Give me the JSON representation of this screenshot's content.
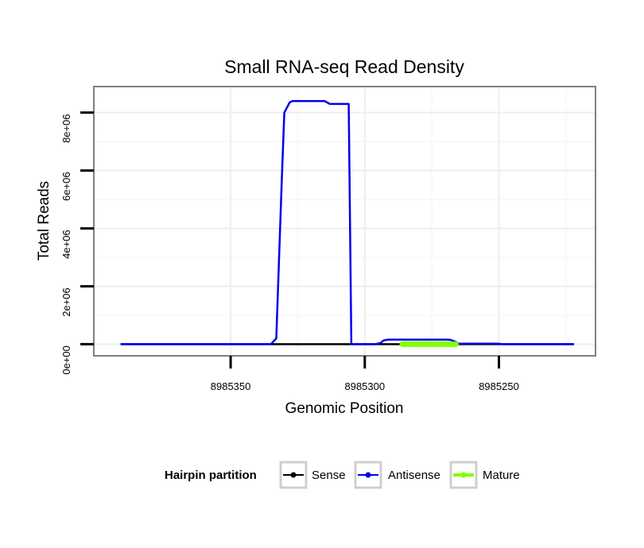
{
  "chart_data": {
    "type": "line",
    "title": "Small RNA-seq Read Density",
    "xlabel": "Genomic Position",
    "ylabel": "Total Reads",
    "x_reversed": true,
    "xlim": [
      8985401,
      8985214
    ],
    "ylim": [
      -400000,
      8900000
    ],
    "x_ticks": [
      8985350,
      8985300,
      8985250
    ],
    "x_tick_labels": [
      "8985350",
      "8985300",
      "8985250"
    ],
    "y_ticks": [
      0,
      2000000,
      4000000,
      6000000,
      8000000
    ],
    "y_tick_labels": [
      "0e+00",
      "2e+06",
      "4e+06",
      "6e+06",
      "8e+06"
    ],
    "grid": true,
    "legend": {
      "title": "Hairpin partition",
      "position": "bottom",
      "entries": [
        "Sense",
        "Antisense",
        "Mature"
      ]
    },
    "series": [
      {
        "name": "Sense",
        "color": "#000000",
        "x": [
          8985391,
          8985222
        ],
        "y": [
          0,
          0
        ]
      },
      {
        "name": "Antisense",
        "color": "#0000ee",
        "x": [
          8985391,
          8985335,
          8985333,
          8985331,
          8985330,
          8985328,
          8985327,
          8985326,
          8985320,
          8985316,
          8985315,
          8985313,
          8985310,
          8985309,
          8985306,
          8985305,
          8985304,
          8985296,
          8985294,
          8985293,
          8985292,
          8985291,
          8985287,
          8985286,
          8985285,
          8985269,
          8985268,
          8985266,
          8985265,
          8985250,
          8985249,
          8985222
        ],
        "y": [
          0,
          0,
          200000,
          5500000,
          8000000,
          8350000,
          8400000,
          8400000,
          8400000,
          8400000,
          8400000,
          8300000,
          8300000,
          8300000,
          8300000,
          0,
          0,
          0,
          50000,
          130000,
          150000,
          160000,
          160000,
          160000,
          160000,
          160000,
          150000,
          80000,
          20000,
          20000,
          0,
          0
        ]
      },
      {
        "name": "Mature",
        "color": "#80ff00",
        "x": [
          8985286,
          8985266
        ],
        "y": [
          0,
          0
        ]
      }
    ]
  }
}
